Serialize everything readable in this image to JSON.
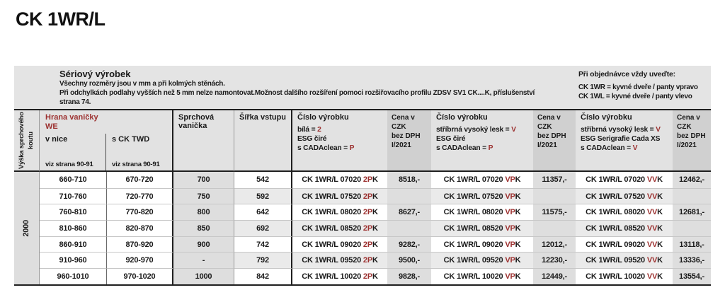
{
  "page_title": "CK 1WR/L",
  "colors": {
    "accent_red": "#9c3130",
    "band_gray": "#e4e4e4",
    "price_gray": "#d0d0d0",
    "row_gray": "#dedede",
    "stripe_gray": "#eaeaea"
  },
  "info": {
    "title": "Sériový výrobek",
    "line1": "Všechny rozměry jsou v mm a při kolmých stěnách.",
    "line2": "Při odchylkách podlahy vyšších než 5 mm nelze namontovat.Možnost dalšího rozšíření pomoci rozšiřovacího profilu ZDSV SV1 CK....K, příslušenství",
    "line3": "strana 74."
  },
  "order_note": {
    "title": "Při objednávce vždy uveďte:",
    "line1": "CK 1WR = kyvné dveře / panty vpravo",
    "line2": "CK 1WL = kyvné dveře / panty vlevo"
  },
  "table": {
    "height_col_label": "Výška sprchového koutu",
    "height_value": "2000",
    "hrana": {
      "title": "Hrana vaničky",
      "subtitle": "WE",
      "col1": "v nice",
      "col2": "s CK TWD",
      "ref": "viz strana 90-91"
    },
    "tray_header": "Sprchová vanička",
    "entry_header": "Šířka vstupu",
    "product_header_title": "Číslo výrobku",
    "product_headers": {
      "h1": {
        "l1": "bílá = ",
        "l1v": "2",
        "l2": "ESG čiré",
        "l3": "s CADAclean = ",
        "l3v": "P"
      },
      "h2": {
        "l1": "stříbrná vysoký lesk = ",
        "l1v": "V",
        "l2": "ESG čiré",
        "l3": "s CADAclean = ",
        "l3v": "P"
      },
      "h3": {
        "l1": "stříbrná vysoký lesk = ",
        "l1v": "V",
        "l2": "ESG Serigrafie Cada XS",
        "l3": "s CADAclean = ",
        "l3v": "V"
      }
    },
    "price_header": {
      "l1": "Cena v CZK",
      "l2": "bez DPH",
      "l3": "I/2021"
    },
    "variants": [
      {
        "red": "2P",
        "black": "K"
      },
      {
        "red": "VP",
        "black": "K"
      },
      {
        "red": "VV",
        "black": "K"
      }
    ],
    "rows": [
      {
        "range_nice": "660-710",
        "range_twd": "670-720",
        "tray": "700",
        "entry": "542",
        "code": "CK 1WR/L 07020",
        "price1": "8518,-",
        "price2": "11357,-",
        "price3": "12462,-"
      },
      {
        "range_nice": "710-760",
        "range_twd": "720-770",
        "tray": "750",
        "entry": "592",
        "code": "CK 1WR/L 07520",
        "price1": "",
        "price2": "",
        "price3": ""
      },
      {
        "range_nice": "760-810",
        "range_twd": "770-820",
        "tray": "800",
        "entry": "642",
        "code": "CK 1WR/L 08020",
        "price1": "8627,-",
        "price2": "11575,-",
        "price3": "12681,-"
      },
      {
        "range_nice": "810-860",
        "range_twd": "820-870",
        "tray": "850",
        "entry": "692",
        "code": "CK 1WR/L 08520",
        "price1": "",
        "price2": "",
        "price3": ""
      },
      {
        "range_nice": "860-910",
        "range_twd": "870-920",
        "tray": "900",
        "entry": "742",
        "code": "CK 1WR/L 09020",
        "price1": "9282,-",
        "price2": "12012,-",
        "price3": "13118,-"
      },
      {
        "range_nice": "910-960",
        "range_twd": "920-970",
        "tray": "-",
        "entry": "792",
        "code": "CK 1WR/L 09520",
        "price1": "9500,-",
        "price2": "12230,-",
        "price3": "13336,-"
      },
      {
        "range_nice": "960-1010",
        "range_twd": "970-1020",
        "tray": "1000",
        "entry": "842",
        "code": "CK 1WR/L 10020",
        "price1": "9828,-",
        "price2": "12449,-",
        "price3": "13554,-"
      }
    ]
  }
}
